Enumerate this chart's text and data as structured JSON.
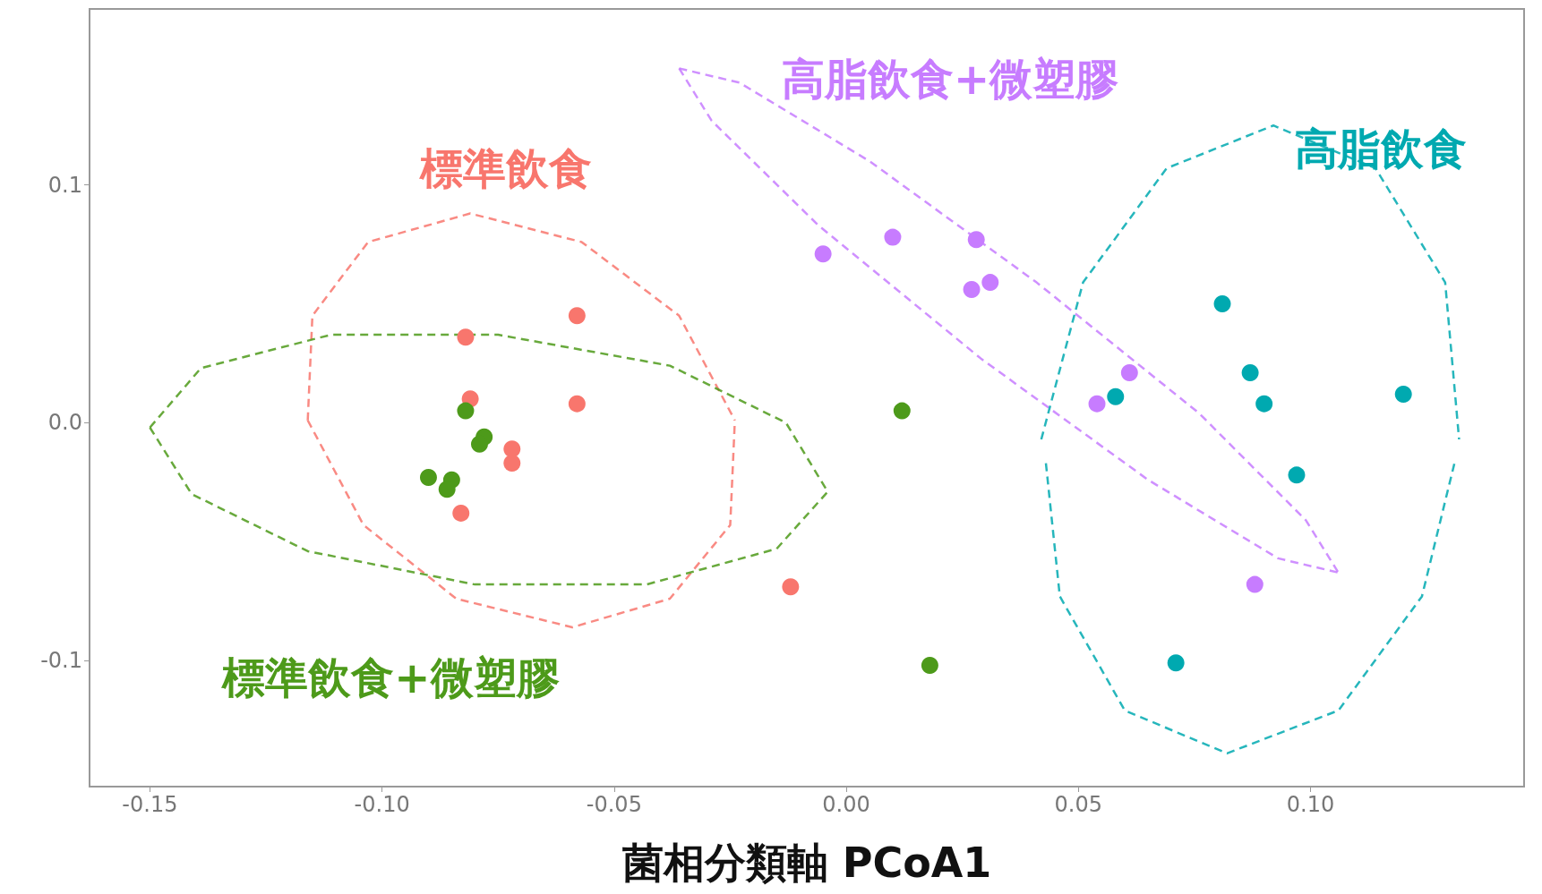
{
  "chart_data": {
    "type": "scatter",
    "xlabel": "菌相分類軸 PCoA1",
    "xlim": [
      -0.163,
      0.146
    ],
    "ylim": [
      -0.153,
      0.174
    ],
    "xticks": [
      -0.15,
      {
        "value": -0.1,
        "label": "-0.10"
      },
      -0.05,
      {
        "value": 0,
        "label": "0.00"
      },
      0.05,
      {
        "value": 0.1,
        "label": "0.10"
      }
    ],
    "yticks": [
      0.1,
      {
        "value": 0,
        "label": "0.0"
      },
      -0.1
    ],
    "grid": false,
    "legend": false,
    "marker": "circle",
    "series": [
      {
        "name": "標準飲食",
        "color": "#f8766d",
        "x": [
          -0.082,
          -0.058,
          -0.081,
          -0.058,
          -0.072,
          -0.072,
          -0.083,
          -0.012
        ],
        "values": [
          0.036,
          0.045,
          0.01,
          0.008,
          -0.011,
          -0.017,
          -0.038,
          -0.069
        ]
      },
      {
        "name": "標準飲食+微塑膠",
        "color": "#4d9a1a",
        "x": [
          -0.082,
          -0.078,
          -0.079,
          -0.09,
          -0.085,
          -0.086,
          0.012,
          0.018
        ],
        "values": [
          0.005,
          -0.006,
          -0.009,
          -0.023,
          -0.024,
          -0.028,
          0.005,
          -0.102
        ]
      },
      {
        "name": "高脂飲食+微塑膠",
        "color": "#c77cff",
        "x": [
          -0.005,
          0.01,
          0.028,
          0.027,
          0.031,
          0.061,
          0.054,
          0.088
        ],
        "values": [
          0.071,
          0.078,
          0.077,
          0.056,
          0.059,
          0.021,
          0.008,
          -0.068
        ]
      },
      {
        "name": "高脂飲食",
        "color": "#00a9b0",
        "x": [
          0.081,
          0.087,
          0.09,
          0.058,
          0.12,
          0.097,
          0.071
        ],
        "values": [
          0.05,
          0.021,
          0.008,
          0.011,
          0.012,
          -0.022,
          -0.101
        ]
      },
      {
        "type": "line",
        "line_style": "dashed",
        "marker": "none",
        "color": "#f8766d",
        "x": [
          -0.116,
          -0.115,
          -0.103,
          -0.081,
          -0.057,
          -0.036,
          -0.024
        ],
        "values": [
          0.001,
          0.045,
          0.076,
          0.088,
          0.076,
          0.045,
          0.001
        ]
      },
      {
        "type": "line",
        "line_style": "dashed",
        "marker": "none",
        "color": "#f8766d",
        "x": [
          -0.116,
          -0.104,
          -0.084,
          -0.059,
          -0.038,
          -0.025,
          -0.024
        ],
        "values": [
          0.001,
          -0.043,
          -0.074,
          -0.086,
          -0.074,
          -0.043,
          0.001
        ]
      },
      {
        "type": "line",
        "line_style": "dashed",
        "marker": "none",
        "color": "#4d9a1a",
        "x": [
          -0.15,
          -0.139,
          -0.111,
          -0.075,
          -0.038,
          -0.013,
          -0.004
        ],
        "values": [
          -0.002,
          0.023,
          0.037,
          0.037,
          0.024,
          0.0,
          -0.029
        ]
      },
      {
        "type": "line",
        "line_style": "dashed",
        "marker": "none",
        "color": "#4d9a1a",
        "x": [
          -0.15,
          -0.141,
          -0.116,
          -0.08,
          -0.043,
          -0.015,
          -0.004
        ],
        "values": [
          -0.002,
          -0.03,
          -0.054,
          -0.068,
          -0.068,
          -0.053,
          -0.029
        ]
      },
      {
        "type": "line",
        "line_style": "dashed",
        "marker": "none",
        "color": "#c77cff",
        "x": [
          -0.036,
          -0.023,
          0.005,
          0.041,
          0.076,
          0.099,
          0.106
        ],
        "values": [
          0.149,
          0.143,
          0.11,
          0.059,
          0.004,
          -0.041,
          -0.063
        ]
      },
      {
        "type": "line",
        "line_style": "dashed",
        "marker": "none",
        "color": "#c77cff",
        "x": [
          -0.036,
          -0.029,
          -0.006,
          0.029,
          0.065,
          0.093,
          0.106
        ],
        "values": [
          0.149,
          0.127,
          0.083,
          0.027,
          -0.024,
          -0.057,
          -0.063
        ]
      },
      {
        "type": "line",
        "line_style": "dashed",
        "marker": "none",
        "color": "#00a9b0",
        "x": [
          0.042,
          0.051,
          0.069,
          0.092,
          0.114,
          0.129,
          0.132
        ],
        "values": [
          -0.007,
          0.059,
          0.107,
          0.125,
          0.107,
          0.059,
          -0.007
        ]
      },
      {
        "type": "line",
        "line_style": "dashed",
        "marker": "none",
        "color": "#00a9b0",
        "x": [
          0.043,
          0.046,
          0.06,
          0.082,
          0.106,
          0.124,
          0.131
        ],
        "values": [
          -0.017,
          -0.073,
          -0.121,
          -0.139,
          -0.121,
          -0.073,
          -0.017
        ]
      }
    ]
  }
}
